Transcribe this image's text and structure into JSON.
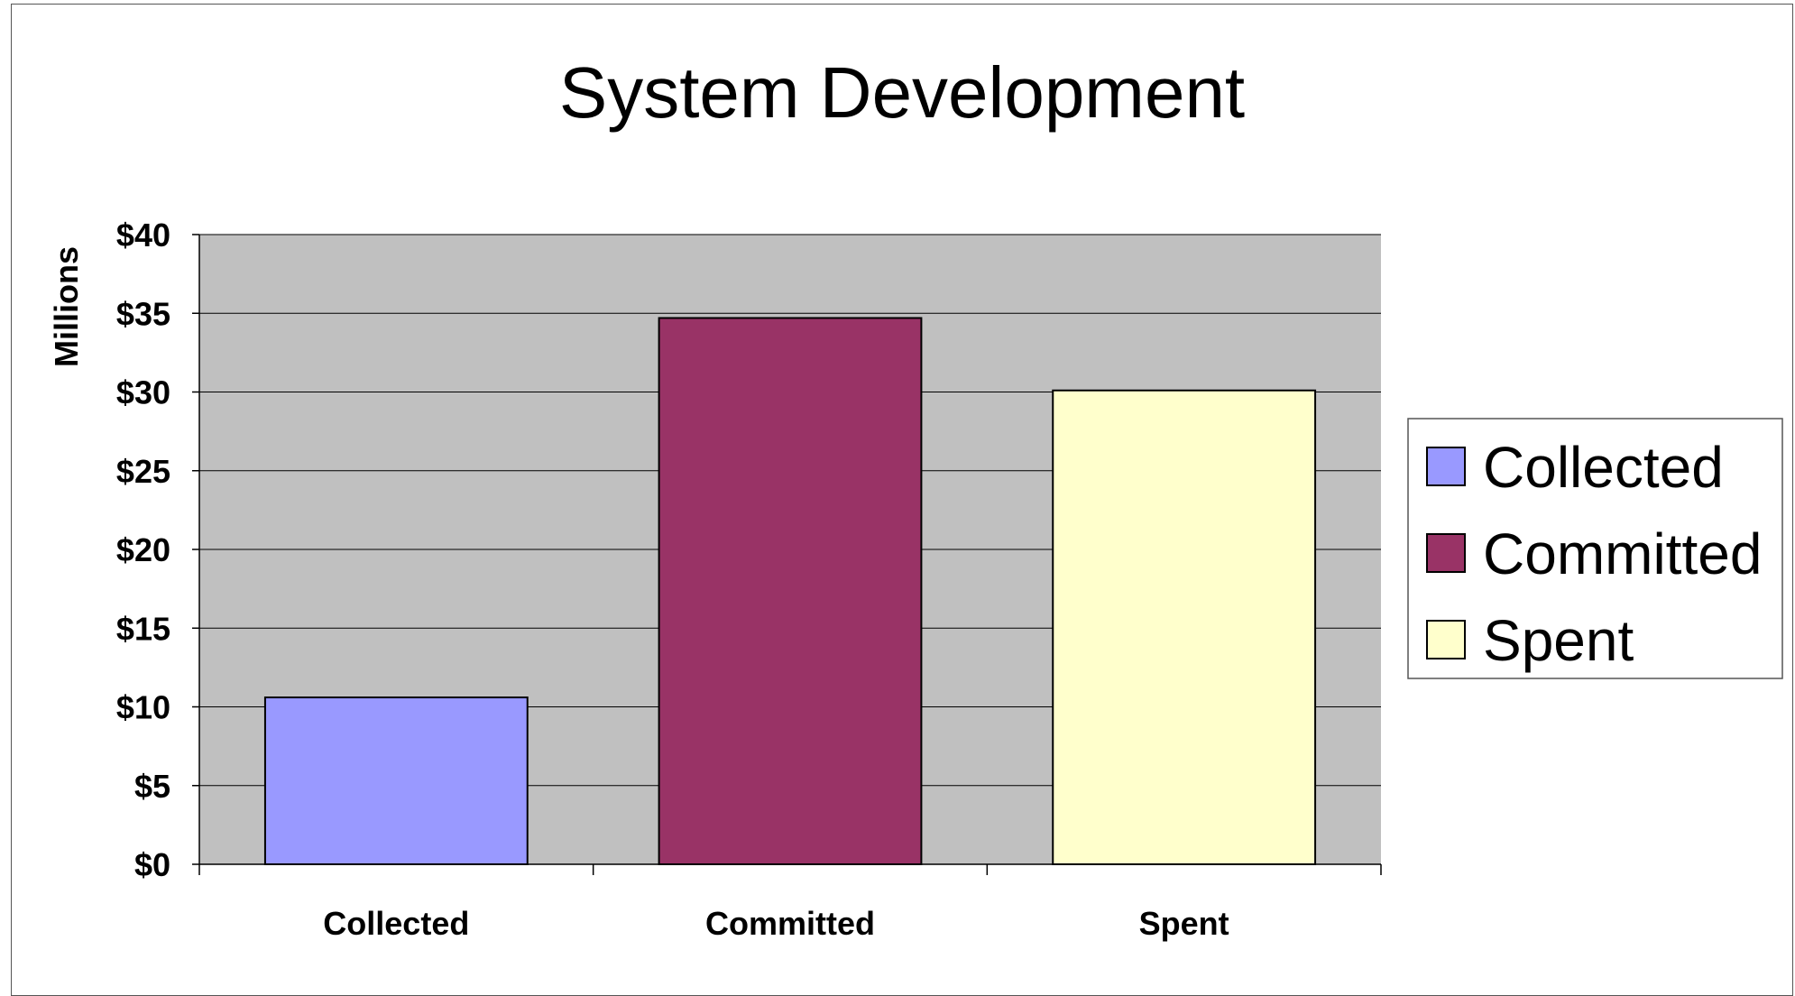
{
  "chart_data": {
    "type": "bar",
    "title": "System Development",
    "ylabel": "Millions",
    "xlabel": "",
    "categories": [
      "Collected",
      "Committed",
      "Spent"
    ],
    "series": [
      {
        "name": "Collected",
        "values": [
          10.6,
          null,
          null
        ]
      },
      {
        "name": "Committed",
        "values": [
          null,
          34.7,
          null
        ]
      },
      {
        "name": "Spent",
        "values": [
          null,
          null,
          30.1
        ]
      }
    ],
    "values": [
      10.6,
      34.7,
      30.1
    ],
    "colors": [
      "#9999FF",
      "#993366",
      "#FFFFCC"
    ],
    "ylim": [
      0,
      40
    ],
    "yticks": [
      0,
      5,
      10,
      15,
      20,
      25,
      30,
      35,
      40
    ],
    "ytick_labels": [
      "$0",
      "$5",
      "$10",
      "$15",
      "$20",
      "$25",
      "$30",
      "$35",
      "$40"
    ],
    "plot_background": "#C0C0C0",
    "grid": true,
    "legend": {
      "position": "right",
      "entries": [
        "Collected",
        "Committed",
        "Spent"
      ]
    }
  }
}
